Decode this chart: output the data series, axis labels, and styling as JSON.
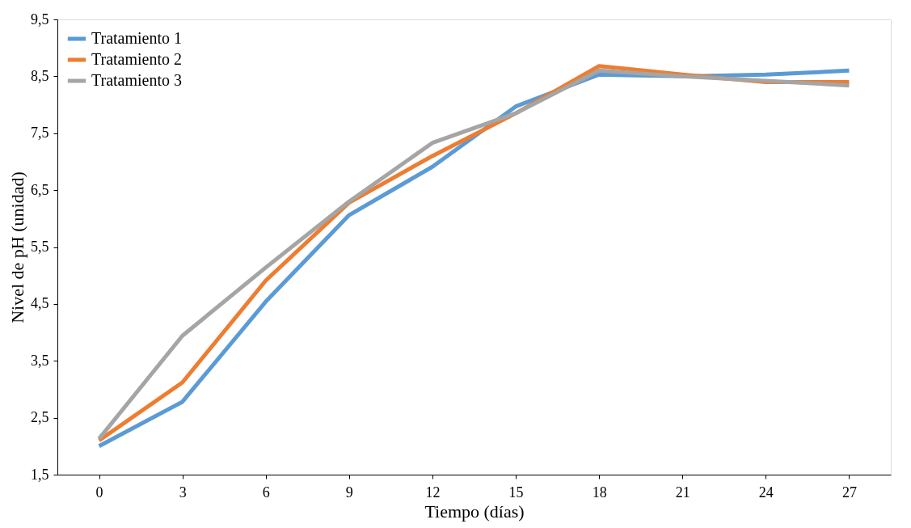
{
  "chart_data": {
    "type": "line",
    "xlabel": "Tiempo (días)",
    "ylabel": "Nivel de pH (unidad)",
    "categories": [
      "0",
      "3",
      "6",
      "9",
      "12",
      "15",
      "18",
      "21",
      "24",
      "27"
    ],
    "series": [
      {
        "name": "Tratamiento 1",
        "color": "#5b9bd5",
        "values": [
          2.0,
          2.78,
          4.54,
          6.06,
          6.91,
          7.97,
          8.53,
          8.5,
          8.53,
          8.6
        ]
      },
      {
        "name": "Tratamiento 2",
        "color": "#ed7d31",
        "values": [
          2.1,
          3.12,
          4.91,
          6.28,
          7.1,
          7.85,
          8.68,
          8.53,
          8.4,
          8.4
        ]
      },
      {
        "name": "Tratamiento 3",
        "color": "#a5a5a5",
        "values": [
          2.13,
          3.94,
          5.14,
          6.3,
          7.33,
          7.85,
          8.6,
          8.5,
          8.42,
          8.34
        ]
      }
    ],
    "ylim": [
      1.5,
      9.5
    ],
    "yticks": [
      {
        "value": 1.5,
        "label": "1,5"
      },
      {
        "value": 2.5,
        "label": "2,5"
      },
      {
        "value": 3.5,
        "label": "3,5"
      },
      {
        "value": 4.5,
        "label": "4,5"
      },
      {
        "value": 5.5,
        "label": "5,5"
      },
      {
        "value": 6.5,
        "label": "6,5"
      },
      {
        "value": 7.5,
        "label": "7,5"
      },
      {
        "value": 8.5,
        "label": "8,5"
      },
      {
        "value": 9.5,
        "label": "9,5"
      }
    ],
    "grid": false,
    "legend": "top left",
    "marker": "none",
    "line_style": "solid"
  }
}
